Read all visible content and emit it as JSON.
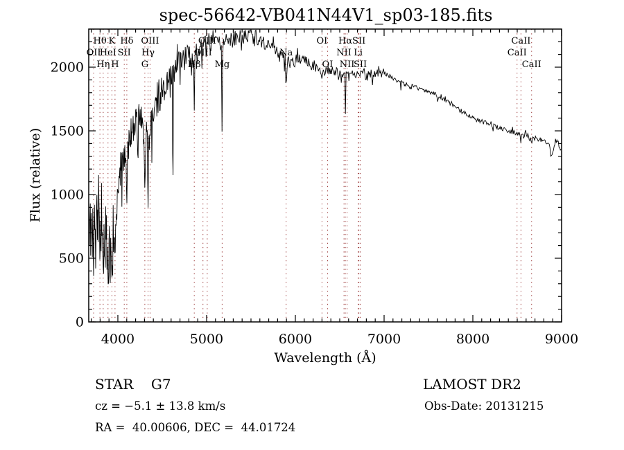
{
  "title": "spec-56642-VB041N44V1_sp03-185.fits",
  "footer": {
    "class_label": "STAR",
    "subclass": "G7",
    "survey": "LAMOST DR2",
    "cz_line": "cz = −5.1 ± 13.8 km/s",
    "obs_date_line": "Obs-Date: 20131215",
    "radec_line": "RA =  40.00606, DEC =  44.01724"
  },
  "chart_data": {
    "type": "line",
    "title": "spec-56642-VB041N44V1_sp03-185.fits",
    "xlabel": "Wavelength (Å)",
    "ylabel": "Flux (relative)",
    "xlim": [
      3672,
      9000
    ],
    "ylim": [
      0,
      2299
    ],
    "x_major_ticks": [
      4000,
      5000,
      6000,
      7000,
      8000,
      9000
    ],
    "y_major_ticks": [
      0,
      500,
      1000,
      1500,
      2000
    ],
    "x_minor_step": 100,
    "y_minor_step": 100,
    "grid": false,
    "line_color": "#000000",
    "marker_color": "#993333",
    "series_name": "flux",
    "envelope_points_wavelength_flux": [
      [
        3680,
        600
      ],
      [
        3700,
        680
      ],
      [
        3720,
        760
      ],
      [
        3740,
        820
      ],
      [
        3760,
        720
      ],
      [
        3780,
        860
      ],
      [
        3800,
        800
      ],
      [
        3820,
        700
      ],
      [
        3840,
        620
      ],
      [
        3860,
        660
      ],
      [
        3880,
        600
      ],
      [
        3900,
        500
      ],
      [
        3920,
        530
      ],
      [
        3940,
        570
      ],
      [
        3960,
        660
      ],
      [
        3980,
        820
      ],
      [
        4000,
        1020
      ],
      [
        4020,
        1160
      ],
      [
        4040,
        1260
      ],
      [
        4060,
        1310
      ],
      [
        4080,
        1330
      ],
      [
        4100,
        1300
      ],
      [
        4120,
        1390
      ],
      [
        4140,
        1460
      ],
      [
        4160,
        1510
      ],
      [
        4180,
        1530
      ],
      [
        4200,
        1570
      ],
      [
        4220,
        1590
      ],
      [
        4240,
        1590
      ],
      [
        4260,
        1570
      ],
      [
        4280,
        1530
      ],
      [
        4300,
        1460
      ],
      [
        4320,
        1410
      ],
      [
        4340,
        1390
      ],
      [
        4360,
        1460
      ],
      [
        4380,
        1560
      ],
      [
        4400,
        1630
      ],
      [
        4440,
        1710
      ],
      [
        4480,
        1760
      ],
      [
        4520,
        1830
      ],
      [
        4560,
        1880
      ],
      [
        4600,
        1940
      ],
      [
        4640,
        1970
      ],
      [
        4680,
        2010
      ],
      [
        4720,
        2040
      ],
      [
        4760,
        2070
      ],
      [
        4800,
        2090
      ],
      [
        4840,
        2070
      ],
      [
        4880,
        2090
      ],
      [
        4920,
        2130
      ],
      [
        4960,
        2140
      ],
      [
        5000,
        2160
      ],
      [
        5050,
        2190
      ],
      [
        5100,
        2210
      ],
      [
        5150,
        2190
      ],
      [
        5200,
        2220
      ],
      [
        5250,
        2240
      ],
      [
        5300,
        2230
      ],
      [
        5350,
        2240
      ],
      [
        5400,
        2230
      ],
      [
        5450,
        2250
      ],
      [
        5500,
        2240
      ],
      [
        5550,
        2240
      ],
      [
        5600,
        2220
      ],
      [
        5650,
        2190
      ],
      [
        5700,
        2170
      ],
      [
        5750,
        2140
      ],
      [
        5800,
        2120
      ],
      [
        5850,
        2090
      ],
      [
        5900,
        2050
      ],
      [
        5950,
        2040
      ],
      [
        6000,
        2050
      ],
      [
        6050,
        2050
      ],
      [
        6100,
        2040
      ],
      [
        6150,
        2020
      ],
      [
        6200,
        2000
      ],
      [
        6250,
        1990
      ],
      [
        6300,
        1970
      ],
      [
        6350,
        1970
      ],
      [
        6400,
        1980
      ],
      [
        6450,
        1960
      ],
      [
        6500,
        1950
      ],
      [
        6550,
        1940
      ],
      [
        6600,
        1960
      ],
      [
        6650,
        1950
      ],
      [
        6700,
        1940
      ],
      [
        6750,
        1940
      ],
      [
        6800,
        1940
      ],
      [
        6850,
        1950
      ],
      [
        6900,
        1940
      ],
      [
        6950,
        1950
      ],
      [
        7000,
        1955
      ],
      [
        7050,
        1930
      ],
      [
        7100,
        1910
      ],
      [
        7150,
        1895
      ],
      [
        7200,
        1875
      ],
      [
        7250,
        1865
      ],
      [
        7300,
        1855
      ],
      [
        7350,
        1845
      ],
      [
        7400,
        1825
      ],
      [
        7450,
        1815
      ],
      [
        7500,
        1805
      ],
      [
        7550,
        1795
      ],
      [
        7600,
        1775
      ],
      [
        7650,
        1755
      ],
      [
        7700,
        1735
      ],
      [
        7750,
        1715
      ],
      [
        7800,
        1695
      ],
      [
        7850,
        1665
      ],
      [
        7900,
        1645
      ],
      [
        7950,
        1625
      ],
      [
        8000,
        1605
      ],
      [
        8050,
        1585
      ],
      [
        8100,
        1575
      ],
      [
        8150,
        1565
      ],
      [
        8200,
        1550
      ],
      [
        8250,
        1535
      ],
      [
        8300,
        1525
      ],
      [
        8350,
        1515
      ],
      [
        8400,
        1505
      ],
      [
        8450,
        1495
      ],
      [
        8500,
        1475
      ],
      [
        8550,
        1455
      ],
      [
        8600,
        1475
      ],
      [
        8650,
        1435
      ],
      [
        8700,
        1445
      ],
      [
        8750,
        1435
      ],
      [
        8800,
        1420
      ],
      [
        8850,
        1405
      ],
      [
        8870,
        1360
      ],
      [
        8900,
        1320
      ],
      [
        8930,
        1425
      ],
      [
        8960,
        1405
      ],
      [
        9000,
        1345
      ]
    ],
    "noise_segments_from_to_amplitude": [
      [
        3680,
        3960,
        320
      ],
      [
        3960,
        4400,
        130
      ],
      [
        4400,
        5000,
        100
      ],
      [
        5000,
        5600,
        65
      ],
      [
        5600,
        6200,
        55
      ],
      [
        6200,
        7000,
        38
      ],
      [
        7000,
        8000,
        17
      ],
      [
        8000,
        9000,
        20
      ]
    ],
    "absorption_lines_wavelength_floor_width": [
      [
        3727,
        360,
        12
      ],
      [
        3750,
        420,
        10
      ],
      [
        3798,
        480,
        12
      ],
      [
        3835,
        430,
        12
      ],
      [
        3889,
        380,
        12
      ],
      [
        3910,
        360,
        10
      ],
      [
        3933,
        350,
        14
      ],
      [
        3968,
        520,
        14
      ],
      [
        4045,
        900,
        8
      ],
      [
        4101,
        930,
        14
      ],
      [
        4226,
        1150,
        8
      ],
      [
        4304,
        1050,
        16
      ],
      [
        4340,
        890,
        12
      ],
      [
        4383,
        1250,
        8
      ],
      [
        4620,
        960,
        9
      ],
      [
        4861,
        1660,
        12
      ],
      [
        5175,
        1460,
        14
      ],
      [
        5270,
        1850,
        6
      ],
      [
        5310,
        1250,
        7
      ],
      [
        5896,
        1760,
        12
      ],
      [
        6122,
        1820,
        6
      ],
      [
        6300,
        1890,
        6
      ],
      [
        6563,
        1615,
        10
      ],
      [
        6870,
        1850,
        8
      ],
      [
        7190,
        1815,
        8
      ],
      [
        7600,
        1700,
        10
      ],
      [
        8227,
        1490,
        6
      ],
      [
        8498,
        1420,
        8
      ],
      [
        8542,
        1400,
        9
      ],
      [
        8662,
        1370,
        10
      ],
      [
        8880,
        1290,
        16
      ]
    ],
    "line_markers": [
      {
        "label": "Hθ",
        "wavelength": 3798,
        "row": 1
      },
      {
        "label": "K",
        "wavelength": 3933,
        "row": 1
      },
      {
        "label": "Hδ",
        "wavelength": 4101,
        "row": 1
      },
      {
        "label": "OIII",
        "wavelength": 4363,
        "row": 1
      },
      {
        "label": "OIII",
        "wavelength": 5007,
        "row": 1
      },
      {
        "label": "OI",
        "wavelength": 6300,
        "row": 1
      },
      {
        "label": "Hα",
        "wavelength": 6563,
        "row": 1
      },
      {
        "label": "SII",
        "wavelength": 6716,
        "row": 1
      },
      {
        "label": "CaII",
        "wavelength": 8542,
        "row": 1
      },
      {
        "label": "OII",
        "wavelength": 3727,
        "row": 2
      },
      {
        "label": "HeI",
        "wavelength": 3889,
        "row": 2
      },
      {
        "label": "SII",
        "wavelength": 4072,
        "row": 2
      },
      {
        "label": "Hγ",
        "wavelength": 4340,
        "row": 2
      },
      {
        "label": "OIII",
        "wavelength": 4959,
        "row": 2
      },
      {
        "label": "Na",
        "wavelength": 5896,
        "row": 2
      },
      {
        "label": "NII",
        "wavelength": 6548,
        "row": 2
      },
      {
        "label": "Li",
        "wavelength": 6708,
        "row": 2
      },
      {
        "label": "CaII",
        "wavelength": 8498,
        "row": 2
      },
      {
        "label": "Hη",
        "wavelength": 3835,
        "row": 3
      },
      {
        "label": "H",
        "wavelength": 3968,
        "row": 3
      },
      {
        "label": "G",
        "wavelength": 4304,
        "row": 3
      },
      {
        "label": "Hβ",
        "wavelength": 4861,
        "row": 3
      },
      {
        "label": "Mg",
        "wavelength": 5175,
        "row": 3
      },
      {
        "label": "OI",
        "wavelength": 6363,
        "row": 3
      },
      {
        "label": "NII",
        "wavelength": 6583,
        "row": 3
      },
      {
        "label": "SII",
        "wavelength": 6731,
        "row": 3
      },
      {
        "label": "CaII",
        "wavelength": 8662,
        "row": 3
      }
    ]
  }
}
